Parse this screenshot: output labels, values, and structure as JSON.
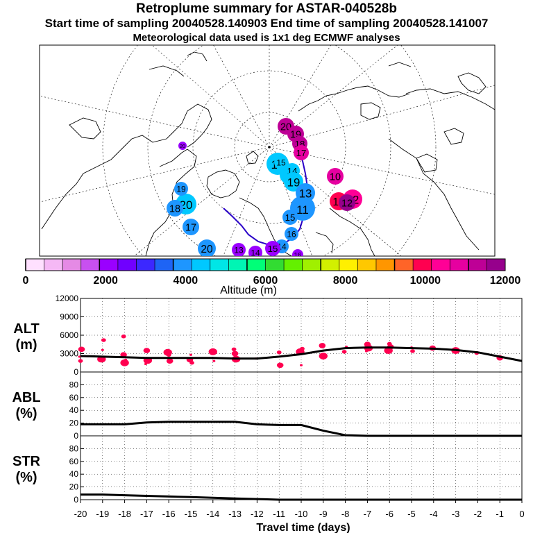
{
  "header": {
    "title": "Retroplume summary for ASTAR-040528b",
    "sampling": "Start time of sampling 20040528.140903     End time of sampling 20040528.141007",
    "met": "Meteorological data used is 1x1 deg ECMWF analyses"
  },
  "colorbar": {
    "label": "Altitude (m)",
    "ticks": [
      "0",
      "2000",
      "4000",
      "6000",
      "8000",
      "10000",
      "12000"
    ],
    "colors": [
      "#ffe0ff",
      "#f5b8f5",
      "#e58ae5",
      "#c850f0",
      "#9a00ff",
      "#7000ff",
      "#3c28ff",
      "#1e64f5",
      "#1e96ff",
      "#00c8ff",
      "#00e6e6",
      "#00f5b4",
      "#00ff78",
      "#32dc32",
      "#64f000",
      "#a0f000",
      "#d2f000",
      "#fff000",
      "#ffc800",
      "#ff9600",
      "#ff6428",
      "#ff0050",
      "#ff0096",
      "#e600a0",
      "#be0096",
      "#96008c"
    ]
  },
  "map": {
    "labels": [
      {
        "t": "20",
        "a": "11500"
      },
      {
        "t": "19",
        "a": "11500"
      },
      {
        "t": "18",
        "a": "11500"
      },
      {
        "t": "17",
        "a": "11000"
      },
      {
        "t": "16",
        "a": "4300"
      },
      {
        "t": "15",
        "a": "4300"
      },
      {
        "t": "10",
        "a": "11000"
      },
      {
        "t": "9",
        "a": "4300"
      },
      {
        "t": "11",
        "a": "3800"
      },
      {
        "t": "14",
        "a": "4300"
      },
      {
        "t": "13",
        "a": "10000"
      },
      {
        "t": "12",
        "a": "10500"
      },
      {
        "t": "19",
        "a": "4300"
      },
      {
        "t": "20",
        "a": "4300"
      },
      {
        "t": "18",
        "a": "3800"
      },
      {
        "t": "17",
        "a": "3800"
      },
      {
        "t": "20",
        "a": "3800"
      },
      {
        "t": "19",
        "a": "3800"
      },
      {
        "t": "20",
        "a": "2300"
      },
      {
        "t": "16",
        "a": "3800"
      },
      {
        "t": "15",
        "a": "3800"
      },
      {
        "t": "14",
        "a": "3800"
      },
      {
        "t": "13",
        "a": "2100"
      },
      {
        "t": "14",
        "a": "2100"
      },
      {
        "t": "15",
        "a": "2100"
      },
      {
        "t": "13",
        "a": "3800"
      },
      {
        "t": "16",
        "a": "2100"
      },
      {
        "t": "12",
        "a": "12000"
      }
    ]
  },
  "chart_data": [
    {
      "type": "line",
      "name": "ALT",
      "ylabel": "ALT (m)",
      "ylim": [
        0,
        12000
      ],
      "yticks": [
        "0",
        "3000",
        "6000",
        "9000",
        "12000"
      ],
      "x": [
        -20,
        -19,
        -18,
        -17,
        -16,
        -15,
        -14,
        -13,
        -12,
        -11,
        -10,
        -9,
        -8,
        -7,
        -6,
        -5,
        -4,
        -3,
        -2,
        -1,
        0
      ],
      "values": [
        2600,
        2500,
        2400,
        2300,
        2300,
        2300,
        2300,
        2200,
        2200,
        2500,
        2900,
        3500,
        3900,
        4000,
        4000,
        3900,
        3800,
        3600,
        3200,
        2500,
        1800
      ],
      "scatter": [
        {
          "x": -20,
          "y": 2500
        },
        {
          "x": -20,
          "y": 1800
        },
        {
          "x": -20,
          "y": 3700
        },
        {
          "x": -19,
          "y": 2100
        },
        {
          "x": -19,
          "y": 3600
        },
        {
          "x": -19,
          "y": 5200
        },
        {
          "x": -18,
          "y": 2800
        },
        {
          "x": -18,
          "y": 1500
        },
        {
          "x": -18,
          "y": 2000
        },
        {
          "x": -18,
          "y": 5800
        },
        {
          "x": -17,
          "y": 3500
        },
        {
          "x": -17,
          "y": 1900
        },
        {
          "x": -17,
          "y": 1300
        },
        {
          "x": -16,
          "y": 2800
        },
        {
          "x": -16,
          "y": 1800
        },
        {
          "x": -16,
          "y": 3200
        },
        {
          "x": -15,
          "y": 2800
        },
        {
          "x": -15,
          "y": 1500
        },
        {
          "x": -15,
          "y": 2000
        },
        {
          "x": -14,
          "y": 3300
        },
        {
          "x": -14,
          "y": 1800
        },
        {
          "x": -13,
          "y": 3700
        },
        {
          "x": -13,
          "y": 3000
        },
        {
          "x": -13,
          "y": 2100
        },
        {
          "x": -12,
          "y": 2200
        },
        {
          "x": -11,
          "y": 3200
        },
        {
          "x": -11,
          "y": 1100
        },
        {
          "x": -10,
          "y": 3300
        },
        {
          "x": -10,
          "y": 1100
        },
        {
          "x": -10,
          "y": 3800
        },
        {
          "x": -9,
          "y": 4300
        },
        {
          "x": -9,
          "y": 2600
        },
        {
          "x": -8,
          "y": 4100
        },
        {
          "x": -8,
          "y": 3300
        },
        {
          "x": -7,
          "y": 4500
        },
        {
          "x": -7,
          "y": 3900
        },
        {
          "x": -7,
          "y": 3400
        },
        {
          "x": -6,
          "y": 4600
        },
        {
          "x": -6,
          "y": 4100
        },
        {
          "x": -6,
          "y": 3500
        },
        {
          "x": -5,
          "y": 4000
        },
        {
          "x": -5,
          "y": 3400
        },
        {
          "x": -4,
          "y": 3900
        },
        {
          "x": -3,
          "y": 3500
        },
        {
          "x": -3,
          "y": 3800
        },
        {
          "x": -2,
          "y": 3100
        },
        {
          "x": -1,
          "y": 2300
        }
      ]
    },
    {
      "type": "line",
      "name": "ABL",
      "ylabel": "ABL (%)",
      "ylim": [
        0,
        100
      ],
      "yticks": [
        "0",
        "20",
        "40",
        "60",
        "80"
      ],
      "x": [
        -20,
        -19,
        -18,
        -17,
        -16,
        -15,
        -14,
        -13,
        -12,
        -11,
        -10,
        -9,
        -8,
        -7,
        -6,
        -5,
        -4,
        -3,
        -2,
        -1,
        0
      ],
      "values": [
        18,
        18,
        18,
        21,
        22,
        22,
        22,
        22,
        18,
        17,
        17,
        8,
        1,
        0,
        0,
        0,
        0,
        0,
        0,
        0,
        0
      ]
    },
    {
      "type": "line",
      "name": "STR",
      "ylabel": "STR (%)",
      "ylim": [
        0,
        100
      ],
      "yticks": [
        "0",
        "20",
        "40",
        "60",
        "80"
      ],
      "x": [
        -20,
        -19,
        -18,
        -17,
        -16,
        -15,
        -14,
        -13,
        -12,
        -11,
        -10,
        -9,
        -8,
        -7,
        -6,
        -5,
        -4,
        -3,
        -2,
        -1,
        0
      ],
      "values": [
        8,
        8,
        7,
        6,
        5,
        4,
        3,
        2,
        1,
        0,
        0,
        0,
        0,
        0,
        0,
        0,
        0,
        0,
        0,
        0,
        0
      ]
    }
  ],
  "xaxis": {
    "label": "Travel time (days)",
    "ticks": [
      "-20",
      "-19",
      "-18",
      "-17",
      "-16",
      "-15",
      "-14",
      "-13",
      "-12",
      "-11",
      "-10",
      "-9",
      "-8",
      "-7",
      "-6",
      "-5",
      "-4",
      "-3",
      "-2",
      "-1",
      "0"
    ]
  },
  "panel_labels": {
    "alt": [
      "ALT",
      "(m)"
    ],
    "abl": [
      "ABL",
      "(%)"
    ],
    "str": [
      "STR",
      "(%)"
    ]
  },
  "marker_color": "#ff0050"
}
